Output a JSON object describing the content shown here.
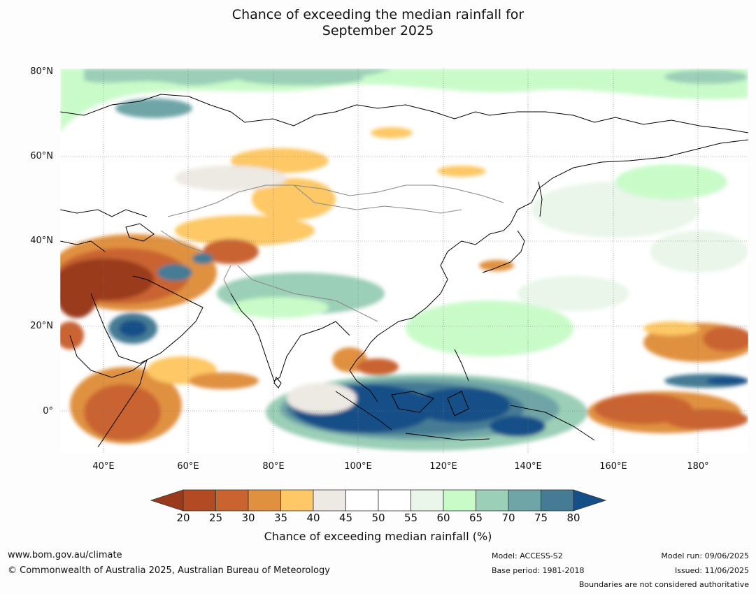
{
  "title": {
    "line1": "Chance of exceeding the median rainfall for",
    "line2": "September 2025"
  },
  "map": {
    "lat_labels": [
      "80°N",
      "60°N",
      "40°N",
      "20°N",
      "0°"
    ],
    "lon_labels": [
      "40°E",
      "60°E",
      "80°E",
      "100°E",
      "120°E",
      "140°E",
      "160°E",
      "180°"
    ]
  },
  "colorbar": {
    "label": "Chance of exceeding median rainfall (%)",
    "ticks": [
      "20",
      "25",
      "30",
      "35",
      "40",
      "45",
      "50",
      "55",
      "60",
      "65",
      "70",
      "75",
      "80"
    ],
    "colors": [
      "#9a3a1c",
      "#b24a23",
      "#c96330",
      "#e0913f",
      "#fdc865",
      "#ede9e3",
      "#ffffff",
      "#ffffff",
      "#e9f6e9",
      "#c9fbc9",
      "#9bcfb7",
      "#6fa5a7",
      "#457b94",
      "#154f88"
    ]
  },
  "footer": {
    "website": "www.bom.gov.au/climate",
    "copyright": "© Commonwealth of Australia 2025, Australian Bureau of Meteorology",
    "model": "Model: ACCESS-S2",
    "base_period": "Base period: 1981-2018",
    "model_run": "Model run: 09/06/2025",
    "issued": "Issued: 11/06/2025",
    "disclaimer": "Boundaries are not considered authoritative"
  }
}
